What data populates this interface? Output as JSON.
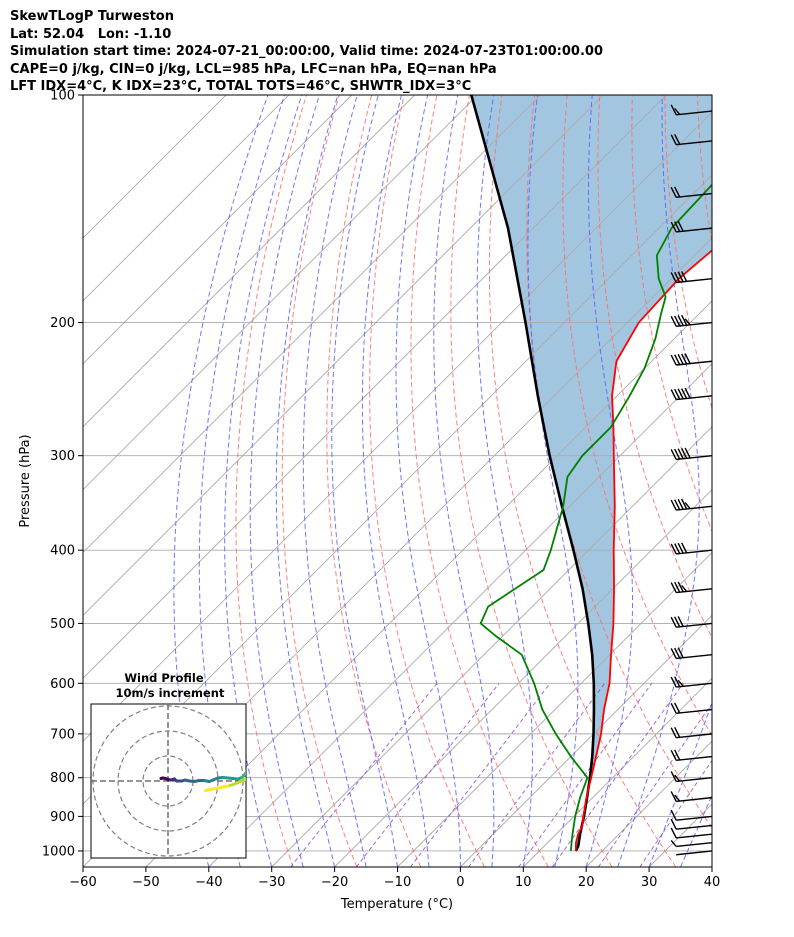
{
  "header": {
    "line1": "SkewTLogP Turweston",
    "line2": "Lat: 52.04   Lon: -1.10",
    "line3": "Simulation start time: 2024-07-21_00:00:00, Valid time: 2024-07-23T01:00:00.00",
    "line4": "CAPE=0 j/kg, CIN=0 j/kg, LCL=985 hPa, LFC=nan hPa, EQ=nan hPa",
    "line5": "LFT IDX=4°C, K IDX=23°C, TOTAL TOTS=46°C, SHWTR_IDX=3°C"
  },
  "colors": {
    "temperature": "#ff0000",
    "dewpoint": "#008000",
    "parcel": "#000000",
    "shade": "#a3c6e0",
    "dry_adiabat": "#ff6a6a",
    "moist_adiabat": "#5a5aff",
    "mixing_ratio": "#8b45c9",
    "isotherm": "#aaaaaa"
  },
  "chart_data": [
    {
      "type": "line",
      "title": "",
      "xlabel": "Temperature (°C)",
      "ylabel": "Pressure (hPa)",
      "xlim": [
        -60,
        40
      ],
      "ylim": [
        1050,
        100
      ],
      "y_scale": "log",
      "skew": true,
      "grid": true,
      "xticks": [
        "−60",
        "−50",
        "−40",
        "−30",
        "−20",
        "−10",
        "0",
        "10",
        "20",
        "30",
        "40"
      ],
      "yticks": [
        "100",
        "200",
        "300",
        "400",
        "500",
        "600",
        "700",
        "800",
        "900",
        "1000"
      ],
      "series": [
        {
          "key": "temperature",
          "points": [
            [
              1000,
              15.8
            ],
            [
              975,
              14.5
            ],
            [
              950,
              13.5
            ],
            [
              925,
              12.8
            ],
            [
              900,
              11.5
            ],
            [
              850,
              9.0
            ],
            [
              800,
              6.6
            ],
            [
              750,
              4.0
            ],
            [
              700,
              1.2
            ],
            [
              650,
              -2.2
            ],
            [
              600,
              -5.5
            ],
            [
              550,
              -9.8
            ],
            [
              500,
              -14.4
            ],
            [
              450,
              -19.8
            ],
            [
              400,
              -26.0
            ],
            [
              350,
              -32.8
            ],
            [
              300,
              -41.0
            ],
            [
              275,
              -45.6
            ],
            [
              250,
              -50.8
            ],
            [
              225,
              -55.6
            ],
            [
              200,
              -58.2
            ],
            [
              175,
              -58.8
            ],
            [
              160,
              -58.0
            ],
            [
              150,
              -56.2
            ],
            [
              140,
              -55.4
            ],
            [
              125,
              -55.2
            ],
            [
              115,
              -54.0
            ],
            [
              105,
              -53.2
            ],
            [
              100,
              -53.6
            ]
          ]
        },
        {
          "key": "dewpoint",
          "points": [
            [
              1000,
              15.0
            ],
            [
              950,
              12.6
            ],
            [
              900,
              10.2
            ],
            [
              850,
              8.0
            ],
            [
              800,
              6.0
            ],
            [
              750,
              0.0
            ],
            [
              700,
              -6.0
            ],
            [
              650,
              -12.0
            ],
            [
              600,
              -17.5
            ],
            [
              550,
              -24.0
            ],
            [
              520,
              -31.0
            ],
            [
              500,
              -35.5
            ],
            [
              475,
              -37.0
            ],
            [
              425,
              -34.0
            ],
            [
              400,
              -36.0
            ],
            [
              350,
              -41.0
            ],
            [
              320,
              -45.0
            ],
            [
              300,
              -46.0
            ],
            [
              275,
              -46.0
            ],
            [
              250,
              -48.0
            ],
            [
              230,
              -50.0
            ],
            [
              210,
              -53.0
            ],
            [
              195,
              -56.0
            ],
            [
              185,
              -58.0
            ],
            [
              175,
              -62.0
            ],
            [
              163,
              -66.0
            ],
            [
              150,
              -68.0
            ],
            [
              130,
              -68.5
            ],
            [
              115,
              -68.5
            ],
            [
              100,
              -69.0
            ]
          ]
        },
        {
          "key": "parcel",
          "points": [
            [
              1000,
              15.8
            ],
            [
              985,
              15.4
            ],
            [
              950,
              13.8
            ],
            [
              900,
              11.6
            ],
            [
              850,
              9.1
            ],
            [
              800,
              6.4
            ],
            [
              750,
              3.4
            ],
            [
              700,
              0.0
            ],
            [
              650,
              -3.8
            ],
            [
              600,
              -8.0
            ],
            [
              550,
              -12.8
            ],
            [
              500,
              -18.4
            ],
            [
              450,
              -24.8
            ],
            [
              400,
              -32.4
            ],
            [
              350,
              -41.2
            ],
            [
              300,
              -51.2
            ],
            [
              250,
              -62.6
            ],
            [
              200,
              -76.2
            ],
            [
              150,
              -94.0
            ],
            [
              100,
              -121.0
            ]
          ]
        }
      ]
    },
    {
      "type": "line",
      "title": "Wind Profile\n10m/s increment",
      "chart_kind": "hodograph",
      "rings_ms": [
        10,
        20,
        30
      ],
      "points": [
        [
          -2.8,
          1.0
        ],
        [
          -2.0,
          1.2
        ],
        [
          -1.0,
          1.0
        ],
        [
          0.0,
          0.6
        ],
        [
          1.0,
          0.4
        ],
        [
          2.0,
          0.6
        ],
        [
          2.6,
          0.8
        ],
        [
          3.0,
          0.4
        ],
        [
          3.2,
          0.2
        ],
        [
          3.5,
          0.0
        ],
        [
          4.5,
          0.0
        ],
        [
          5.5,
          0.0
        ],
        [
          6.8,
          0.4
        ],
        [
          8.5,
          0.0
        ],
        [
          10.5,
          -0.2
        ],
        [
          12.5,
          0.2
        ],
        [
          14.5,
          0.2
        ],
        [
          16.5,
          -0.2
        ],
        [
          18.0,
          0.4
        ],
        [
          20.0,
          1.2
        ],
        [
          22.0,
          1.4
        ],
        [
          24.0,
          1.2
        ],
        [
          26.0,
          1.0
        ],
        [
          28.0,
          0.8
        ],
        [
          29.5,
          1.4
        ],
        [
          30.5,
          2.2
        ],
        [
          31.0,
          3.0
        ],
        [
          31.5,
          3.8
        ],
        [
          32.0,
          3.4
        ],
        [
          32.5,
          2.6
        ],
        [
          33.0,
          1.8
        ],
        [
          32.0,
          1.0
        ],
        [
          31.0,
          0.6
        ],
        [
          29.5,
          0.0
        ],
        [
          28.0,
          -0.6
        ],
        [
          26.0,
          -1.4
        ],
        [
          24.0,
          -2.0
        ],
        [
          22.0,
          -2.4
        ],
        [
          20.0,
          -2.8
        ],
        [
          18.0,
          -3.2
        ],
        [
          16.0,
          -3.6
        ],
        [
          15.0,
          -3.8
        ]
      ]
    }
  ],
  "wind_barbs": [
    {
      "p": 1000,
      "s": 3
    },
    {
      "p": 975,
      "s": 8
    },
    {
      "p": 950,
      "s": 12
    },
    {
      "p": 925,
      "s": 14
    },
    {
      "p": 900,
      "s": 14
    },
    {
      "p": 850,
      "s": 15
    },
    {
      "p": 800,
      "s": 17
    },
    {
      "p": 750,
      "s": 20
    },
    {
      "p": 700,
      "s": 22
    },
    {
      "p": 650,
      "s": 24
    },
    {
      "p": 600,
      "s": 26
    },
    {
      "p": 550,
      "s": 30
    },
    {
      "p": 500,
      "s": 34
    },
    {
      "p": 450,
      "s": 38
    },
    {
      "p": 400,
      "s": 44
    },
    {
      "p": 350,
      "s": 46
    },
    {
      "p": 300,
      "s": 50
    },
    {
      "p": 250,
      "s": 50
    },
    {
      "p": 225,
      "s": 50
    },
    {
      "p": 200,
      "s": 48
    },
    {
      "p": 175,
      "s": 42
    },
    {
      "p": 150,
      "s": 30
    },
    {
      "p": 135,
      "s": 22
    },
    {
      "p": 115,
      "s": 20
    },
    {
      "p": 105,
      "s": 18
    }
  ]
}
